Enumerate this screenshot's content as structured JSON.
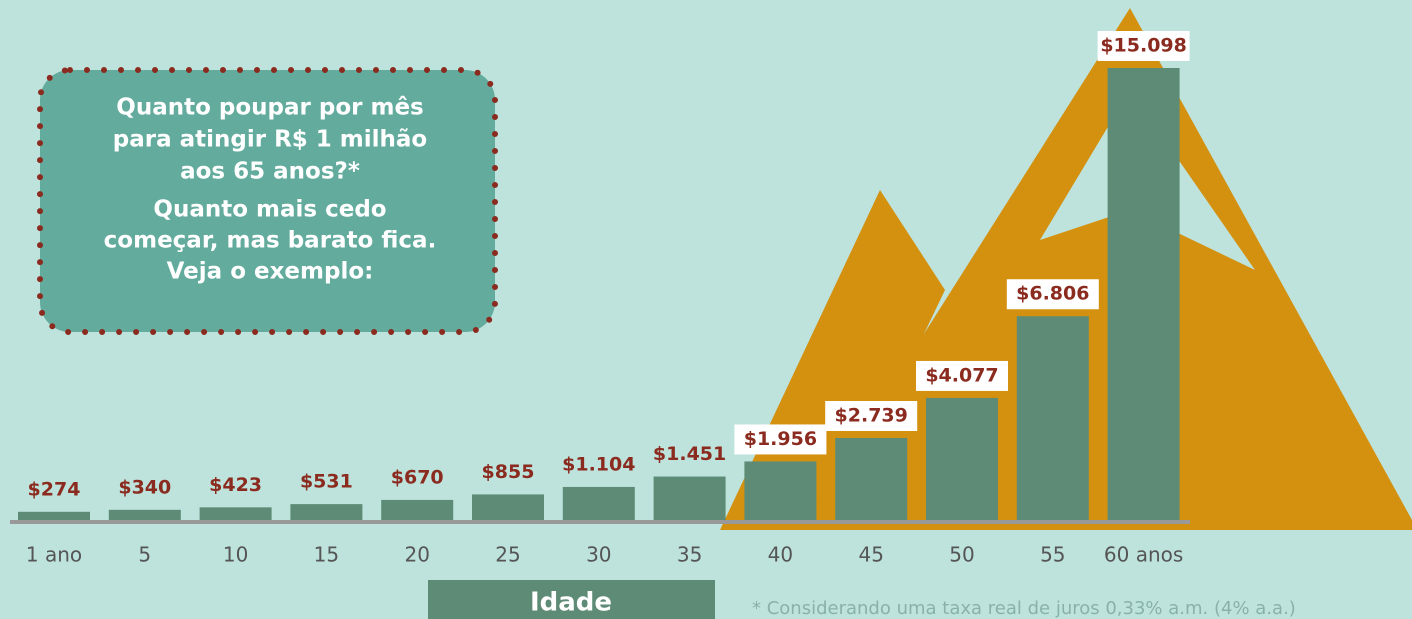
{
  "chart_data": {
    "type": "bar",
    "title_lines": [
      "Quanto poupar por mês",
      "para atingir R$ 1 milhão",
      "aos 65 anos?*",
      "Quanto mais cedo",
      "começar, mas barato fica.",
      "Veja o exemplo:"
    ],
    "categories": [
      "1  ano",
      "5",
      "10",
      "15",
      "20",
      "25",
      "30",
      "35",
      "40",
      "45",
      "50",
      "55",
      "60 anos"
    ],
    "values": [
      274,
      340,
      423,
      531,
      670,
      855,
      1104,
      1451,
      1956,
      2739,
      4077,
      6806,
      15098
    ],
    "value_labels": [
      "$274",
      "$340",
      "$423",
      "$531",
      "$670",
      "$855",
      "$1.104",
      "$1.451",
      "$1.956",
      "$2.739",
      "$4.077",
      "$6.806",
      "$15.098"
    ],
    "color": "#5e8b76",
    "x_label": "Idade",
    "footnote": "* Considerando uma taxa real de juros 0,33% a.m. (4% a.a.)"
  }
}
